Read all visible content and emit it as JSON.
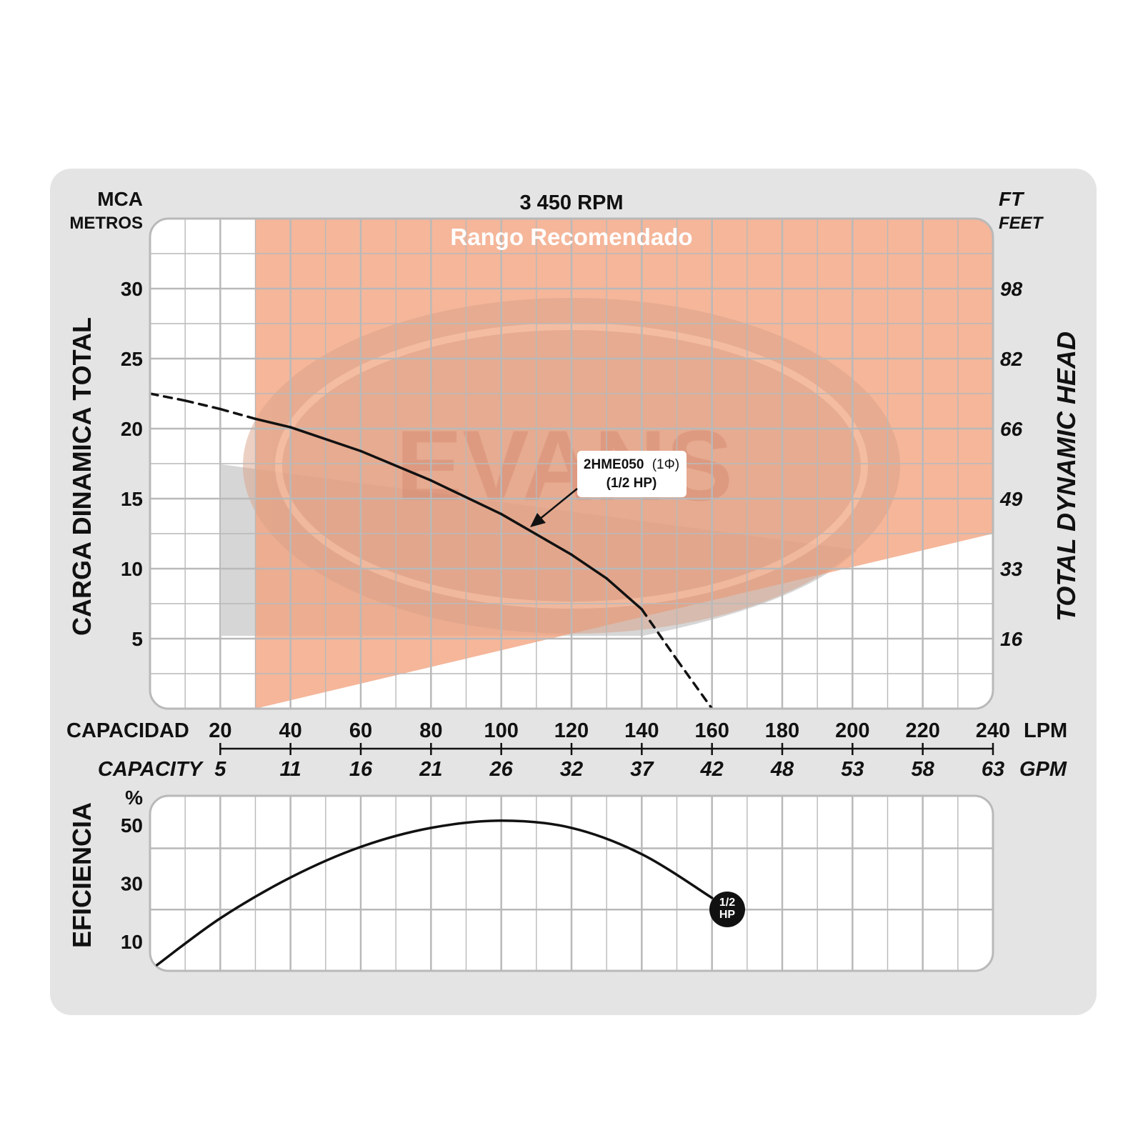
{
  "header": {
    "left_unit_top": "MCA",
    "left_unit_bottom": "METROS",
    "speed": "3 450 RPM",
    "right_unit_top": "FT",
    "right_unit_bottom": "FEET",
    "recommended_range": "Rango Recomendado",
    "watermark": "EVANS"
  },
  "axes": {
    "left_title": "CARGA  DINAMICA  TOTAL",
    "right_title": "TOTAL  DYNAMIC  HEAD",
    "capacity_label_es": "CAPACIDAD",
    "capacity_label_en": "CAPACITY",
    "lpm_unit": "LPM",
    "gpm_unit": "GPM",
    "efficiency_title": "EFICIENCIA",
    "efficiency_unit": "%"
  },
  "annotations": {
    "model": "2HME050",
    "phase": "(1Φ)",
    "power": "(1/2 HP)",
    "badge_line1": "1/2",
    "badge_line2": "HP"
  },
  "colors": {
    "recommended_fill": "#f2a27e",
    "grid_line": "#b9b9b9",
    "frame_bg": "#e4e4e4",
    "curve": "#111111"
  },
  "chart_data": [
    {
      "type": "line",
      "title": "3 450 RPM",
      "xlabel": "CAPACIDAD",
      "ylabel": "CARGA  DINAMICA  TOTAL",
      "x_unit": "LPM",
      "y_unit": "MCA",
      "xlim": [
        0,
        240
      ],
      "ylim": [
        0,
        35
      ],
      "x_ticks": [
        20,
        40,
        60,
        80,
        100,
        120,
        140,
        160,
        180,
        200,
        220,
        240
      ],
      "x_ticks_gpm": [
        "5",
        "11",
        "16",
        "21",
        "26",
        "32",
        "37",
        "42",
        "48",
        "53",
        "58",
        "63"
      ],
      "y_ticks": [
        5,
        10,
        15,
        20,
        25,
        30
      ],
      "y2_ticks": [
        "16",
        "33",
        "49",
        "66",
        "82",
        "98"
      ],
      "grid": true,
      "recommended_range": {
        "x_start": 30,
        "x_end": 240,
        "lower_bound_at_start": 0,
        "lower_bound_at_end": 12.5
      },
      "series": [
        {
          "name": "2HME050 (1Φ) (1/2 HP)",
          "points": [
            [
              0,
              22.5
            ],
            [
              10,
              22.0
            ],
            [
              20,
              21.4
            ],
            [
              30,
              20.7
            ],
            [
              40,
              20.1
            ],
            [
              60,
              18.4
            ],
            [
              80,
              16.3
            ],
            [
              100,
              13.9
            ],
            [
              120,
              11.0
            ],
            [
              130,
              9.3
            ],
            [
              140,
              7.1
            ],
            [
              150,
              3.5
            ],
            [
              160,
              0
            ]
          ],
          "dashed_ranges": [
            [
              0,
              30
            ],
            [
              140,
              160
            ]
          ]
        }
      ]
    },
    {
      "type": "line",
      "xlabel": "CAPACIDAD",
      "ylabel": "EFICIENCIA",
      "y_unit": "%",
      "xlim": [
        0,
        240
      ],
      "ylim": [
        0,
        60
      ],
      "y_ticks": [
        10,
        30,
        50
      ],
      "grid": true,
      "series": [
        {
          "name": "1/2 HP",
          "points": [
            [
              2,
              2.0
            ],
            [
              20,
              18.0
            ],
            [
              40,
              32.0
            ],
            [
              60,
              42.5
            ],
            [
              80,
              49.0
            ],
            [
              100,
              51.5
            ],
            [
              120,
              49.0
            ],
            [
              140,
              40.0
            ],
            [
              160,
              25.0
            ]
          ]
        }
      ]
    }
  ]
}
